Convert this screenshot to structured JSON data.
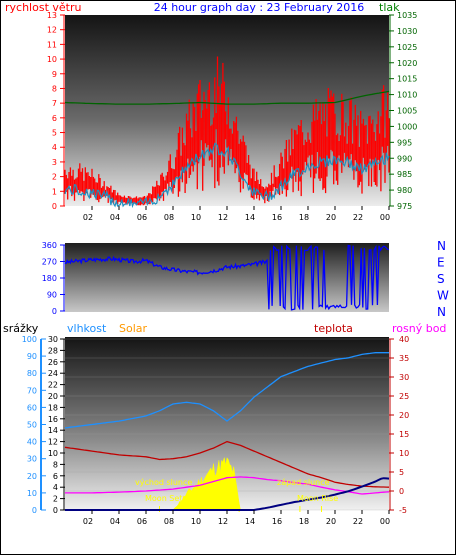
{
  "header": {
    "title": "24 hour graph day : 23 February 2016",
    "left_label": "rychlost větru",
    "right_label": "tlak"
  },
  "labels": {
    "srazky": "srážky",
    "vlhkost": "vlhkost",
    "solar": "Solar",
    "teplota": "teplota",
    "rosny_bod": "rosný bod",
    "sunrise": "východ slunce",
    "sunset": "západ slunce",
    "moonset": "Moon Set",
    "moonrise": "Moon Rise"
  },
  "colors": {
    "wind": "#ff0000",
    "gust": "#1e90c0",
    "pressure": "#006400",
    "direction": "#0000ff",
    "humidity": "#1e90ff",
    "temperature": "#c00000",
    "dewpoint": "#ff00ff",
    "rain": "#000080",
    "solar": "#ffff00",
    "title": "#0000ff",
    "tlak": "#008000",
    "solar_label": "#ff9900"
  },
  "time_ticks": [
    "02",
    "04",
    "06",
    "08",
    "10",
    "12",
    "14",
    "16",
    "18",
    "20",
    "22",
    "00"
  ],
  "chart_data": [
    {
      "type": "line",
      "name": "wind",
      "x_range": [
        0,
        24
      ],
      "ylim_left": [
        0,
        13
      ],
      "ylim_right": [
        975,
        1035
      ],
      "left_ticks": [
        "0",
        "1",
        "2",
        "3",
        "4",
        "5",
        "6",
        "7",
        "8",
        "9",
        "10",
        "11",
        "12",
        "13"
      ],
      "right_ticks": [
        "975",
        "980",
        "985",
        "990",
        "995",
        "1000",
        "1005",
        "1010",
        "1015",
        "1020",
        "1025",
        "1030",
        "1035"
      ],
      "series": [
        {
          "name": "rychlost větru",
          "axis": "left",
          "x": [
            0,
            1,
            2,
            3,
            4,
            5,
            6,
            7,
            8,
            9,
            10,
            11,
            12,
            13,
            14,
            15,
            16,
            17,
            18,
            19,
            20,
            21,
            22,
            23,
            24
          ],
          "values": [
            1.5,
            1.4,
            1.2,
            0.8,
            0.3,
            0.2,
            0.2,
            0.9,
            2.0,
            3.5,
            4.6,
            5.3,
            5.0,
            3.0,
            1.2,
            0.8,
            1.8,
            2.9,
            3.6,
            4.0,
            4.2,
            3.9,
            3.3,
            3.8,
            4.5
          ]
        },
        {
          "name": "tlak",
          "axis": "right",
          "x": [
            0,
            2,
            4,
            6,
            8,
            10,
            12,
            14,
            16,
            18,
            20,
            21,
            22,
            23,
            24
          ],
          "values": [
            1007.5,
            1007.2,
            1007.0,
            1007.0,
            1007.2,
            1007.5,
            1007.0,
            1007.0,
            1007.3,
            1007.3,
            1007.5,
            1008.5,
            1009.5,
            1010.3,
            1011.0
          ]
        }
      ]
    },
    {
      "type": "line",
      "name": "wind-direction",
      "x_range": [
        0,
        24
      ],
      "ylim": [
        0,
        360
      ],
      "left_ticks": [
        "0",
        "90",
        "180",
        "270",
        "360"
      ],
      "right_ticks": [
        "N",
        "W",
        "S",
        "E",
        "N"
      ],
      "series": [
        {
          "name": "direction",
          "x": [
            0,
            2,
            3.5,
            5,
            6,
            7,
            8,
            9,
            10,
            11,
            12,
            13,
            14,
            15
          ],
          "values": [
            265,
            280,
            285,
            270,
            275,
            240,
            225,
            215,
            210,
            220,
            240,
            245,
            255,
            270
          ]
        }
      ]
    },
    {
      "type": "line",
      "name": "humidity-temperature",
      "x_range": [
        0,
        24
      ],
      "ylim_humidity": [
        0,
        100
      ],
      "ylim_rain": [
        0,
        30
      ],
      "ylim_temp": [
        -5,
        40
      ],
      "humidity_ticks": [
        "0",
        "10",
        "20",
        "30",
        "40",
        "50",
        "60",
        "70",
        "80",
        "90",
        "100"
      ],
      "rain_ticks": [
        "0",
        "2",
        "4",
        "6",
        "8",
        "10",
        "12",
        "14",
        "16",
        "18",
        "20",
        "22",
        "24",
        "26",
        "28",
        "30"
      ],
      "temp_ticks": [
        "-5",
        "0",
        "5",
        "10",
        "15",
        "20",
        "25",
        "30",
        "35",
        "40"
      ],
      "series": [
        {
          "name": "vlhkost",
          "axis": "humidity",
          "x": [
            0,
            2,
            4,
            6,
            7,
            8,
            9,
            10,
            11,
            12,
            13,
            14,
            15,
            16,
            18,
            20,
            21,
            22,
            23,
            24
          ],
          "values": [
            48,
            50,
            52,
            55,
            58,
            62,
            63,
            62,
            58,
            52,
            58,
            66,
            72,
            78,
            84,
            88,
            89,
            91,
            92,
            92
          ]
        },
        {
          "name": "teplota",
          "axis": "temp",
          "x": [
            0,
            2,
            4,
            6,
            7,
            8,
            9,
            10,
            11,
            12,
            13,
            14,
            15,
            16,
            17,
            18,
            19,
            20,
            21,
            22,
            23,
            24
          ],
          "values": [
            11.5,
            10.5,
            9.5,
            9.0,
            8.3,
            8.5,
            9.0,
            10.0,
            11.3,
            13.0,
            12.0,
            10.5,
            9.0,
            7.5,
            6.0,
            4.5,
            3.5,
            2.3,
            1.7,
            1.3,
            1.1,
            1.0
          ]
        },
        {
          "name": "rosný bod",
          "axis": "temp",
          "x": [
            0,
            2,
            4,
            6,
            8,
            10,
            11,
            12,
            13,
            14,
            15,
            16,
            17,
            18,
            19,
            20,
            21,
            22,
            23,
            24
          ],
          "values": [
            -0.5,
            -0.5,
            -0.3,
            0,
            0.5,
            1.5,
            2.5,
            3.5,
            3.7,
            3.5,
            3.0,
            2.7,
            2.2,
            1.8,
            1.0,
            0.3,
            -0.2,
            -0.8,
            -0.5,
            -0.2
          ]
        },
        {
          "name": "srážky",
          "axis": "rain",
          "x": [
            0,
            14,
            15,
            16,
            17,
            18,
            19,
            20,
            21,
            22,
            23,
            23.5,
            24
          ],
          "values": [
            0,
            0,
            0.4,
            0.9,
            1.4,
            1.8,
            2.2,
            2.7,
            3.3,
            4.1,
            5.0,
            5.6,
            5.5
          ]
        },
        {
          "name": "Solar",
          "axis": "humidity",
          "x": [
            8,
            8.5,
            9,
            9.5,
            10,
            10.5,
            11,
            11.5,
            12,
            12.5,
            13
          ],
          "values": [
            0,
            5,
            10,
            14,
            18,
            22,
            26,
            28,
            30,
            24,
            0
          ]
        }
      ]
    }
  ]
}
